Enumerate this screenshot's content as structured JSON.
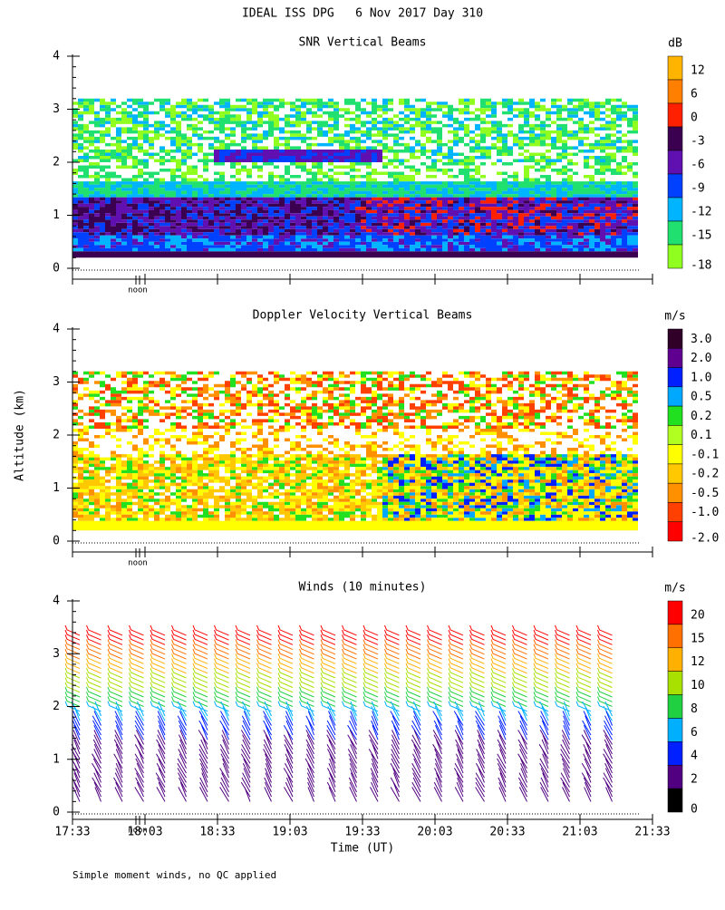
{
  "title": "IDEAL ISS DPG   6 Nov 2017 Day 310",
  "y_label": "Altitude (km)",
  "x_label": "Time (UT)",
  "footnote": "Simple moment winds, no QC applied",
  "chart_data": [
    {
      "type": "heatmap",
      "title": "SNR Vertical Beams",
      "annotation": "noon",
      "ylim": [
        0,
        4
      ],
      "yticks": [
        0,
        1,
        2,
        3,
        4
      ],
      "colorbar": {
        "unit": "dB",
        "ticks": [
          12,
          6,
          0,
          -3,
          -6,
          -9,
          -12,
          -15,
          -18
        ],
        "colors": [
          "#ffb400",
          "#ff8000",
          "#ff2000",
          "#3c0050",
          "#6010b0",
          "#0040ff",
          "#00b4ff",
          "#20e070",
          "#90ff20"
        ]
      }
    },
    {
      "type": "heatmap",
      "title": "Doppler Velocity Vertical Beams",
      "annotation": "noon",
      "ylim": [
        0,
        4
      ],
      "yticks": [
        0,
        1,
        2,
        3,
        4
      ],
      "colorbar": {
        "unit": "m/s",
        "ticks": [
          {
            "value": 3,
            "label": "3.0"
          },
          {
            "value": 2,
            "label": "2.0"
          },
          {
            "value": 1,
            "label": "1.0"
          },
          0.5,
          0.2,
          0.1,
          -0.1,
          -0.2,
          -0.5,
          {
            "value": -1,
            "label": "-1.0"
          },
          {
            "value": -2,
            "label": "-2.0"
          }
        ],
        "colors": [
          "#300028",
          "#600090",
          "#0020ff",
          "#00a8ff",
          "#20e020",
          "#b0ff20",
          "#ffff00",
          "#ffc800",
          "#ff9000",
          "#ff4000",
          "#ff0000"
        ]
      }
    },
    {
      "type": "barbs",
      "title": "Winds (10 minutes)",
      "annotation": "noon",
      "ylim": [
        0,
        4
      ],
      "yticks": [
        0,
        1,
        2,
        3,
        4
      ],
      "xticks": [
        "17:33",
        "18:03",
        "18:33",
        "19:03",
        "19:33",
        "20:03",
        "20:33",
        "21:03",
        "21:33"
      ],
      "colorbar": {
        "unit": "m/s",
        "ticks": [
          20,
          15,
          12,
          10,
          8,
          6,
          4,
          2,
          0
        ],
        "colors": [
          "#ff0000",
          "#ff7000",
          "#ffb000",
          "#a8e000",
          "#20d040",
          "#00b0ff",
          "#0020ff",
          "#500080",
          "#000000"
        ]
      }
    }
  ]
}
